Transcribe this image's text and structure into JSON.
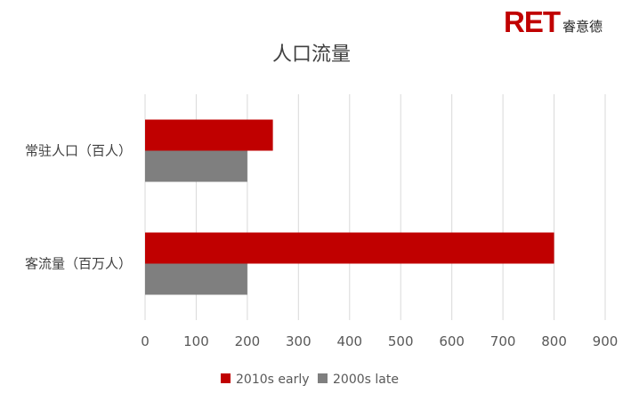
{
  "logo": {
    "mark": "RET",
    "name": "睿意德"
  },
  "chart_data": {
    "type": "bar",
    "orientation": "horizontal",
    "title": "人口流量",
    "categories": [
      "常驻人口（百人）",
      "客流量（百万人）"
    ],
    "series": [
      {
        "name": "2010s early",
        "color": "#c00000",
        "values": [
          250,
          800
        ]
      },
      {
        "name": "2000s late",
        "color": "#7f7f7f",
        "values": [
          200,
          200
        ]
      }
    ],
    "xlim": [
      0,
      900
    ],
    "xticks": [
      0,
      100,
      200,
      300,
      400,
      500,
      600,
      700,
      800,
      900
    ],
    "grid": true,
    "legend_position": "bottom"
  }
}
